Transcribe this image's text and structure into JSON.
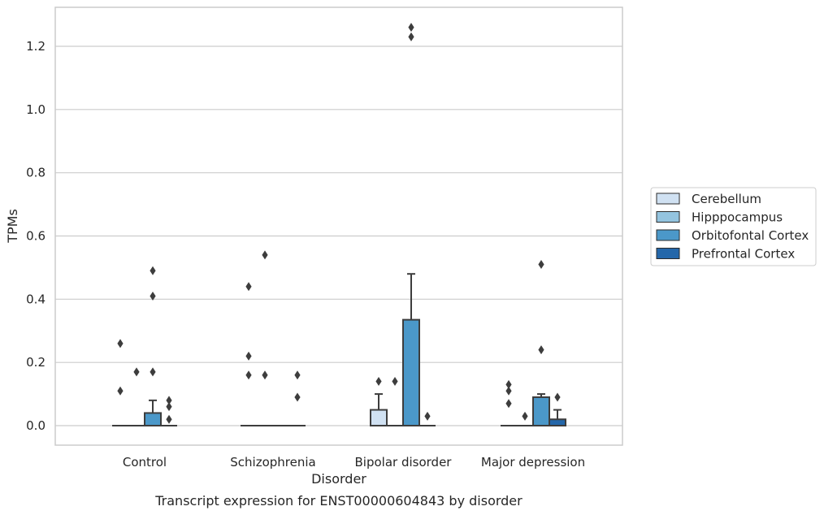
{
  "caption": "Transcript expression for ENST00000604843 by disorder",
  "chart_data": {
    "type": "box",
    "title": "",
    "xlabel": "Disorder",
    "ylabel": "TPMs",
    "ylim": [
      -0.06,
      1.32
    ],
    "yticks": [
      0.0,
      0.2,
      0.4,
      0.6,
      0.8,
      1.0,
      1.2
    ],
    "ytick_labels": [
      "0.0",
      "0.2",
      "0.4",
      "0.6",
      "0.8",
      "1.0",
      "1.2"
    ],
    "grid": true,
    "legend_position": "right",
    "categories": [
      "Control",
      "Schizophrenia",
      "Bipolar disorder",
      "Major depression"
    ],
    "series": [
      {
        "name": "Cerebellum",
        "color": "#d0e1f2",
        "boxes": [
          {
            "q1": 0,
            "median": 0,
            "q3": 0,
            "whisker_low": 0,
            "whisker_high": 0,
            "outliers": [
              0.11,
              0.26
            ]
          },
          {
            "q1": 0,
            "median": 0,
            "q3": 0,
            "whisker_low": 0,
            "whisker_high": 0,
            "outliers": [
              0.16,
              0.22,
              0.44
            ]
          },
          {
            "q1": 0,
            "median": 0,
            "q3": 0.05,
            "whisker_low": 0,
            "whisker_high": 0.1,
            "outliers": [
              0.14
            ]
          },
          {
            "q1": 0,
            "median": 0,
            "q3": 0,
            "whisker_low": 0,
            "whisker_high": 0,
            "outliers": [
              0.07,
              0.11,
              0.13
            ]
          }
        ]
      },
      {
        "name": "Hipppocampus",
        "color": "#94c4df",
        "boxes": [
          {
            "q1": 0,
            "median": 0,
            "q3": 0,
            "whisker_low": 0,
            "whisker_high": 0,
            "outliers": [
              0.17
            ]
          },
          {
            "q1": 0,
            "median": 0,
            "q3": 0,
            "whisker_low": 0,
            "whisker_high": 0,
            "outliers": [
              0.16,
              0.54
            ]
          },
          {
            "q1": 0,
            "median": 0,
            "q3": 0,
            "whisker_low": 0,
            "whisker_high": 0,
            "outliers": [
              0.14
            ]
          },
          {
            "q1": 0,
            "median": 0,
            "q3": 0,
            "whisker_low": 0,
            "whisker_high": 0,
            "outliers": [
              0.03
            ]
          }
        ]
      },
      {
        "name": "Orbitofontal Cortex",
        "color": "#4b98c9",
        "boxes": [
          {
            "q1": 0,
            "median": 0,
            "q3": 0.04,
            "whisker_low": 0,
            "whisker_high": 0.08,
            "outliers": [
              0.17,
              0.41,
              0.49
            ]
          },
          {
            "q1": 0,
            "median": 0,
            "q3": 0,
            "whisker_low": 0,
            "whisker_high": 0,
            "outliers": []
          },
          {
            "q1": 0,
            "median": 0,
            "q3": 0.335,
            "whisker_low": 0,
            "whisker_high": 0.48,
            "outliers": [
              1.23,
              1.26
            ]
          },
          {
            "q1": 0,
            "median": 0,
            "q3": 0.09,
            "whisker_low": 0,
            "whisker_high": 0.1,
            "outliers": [
              0.24,
              0.51
            ]
          }
        ]
      },
      {
        "name": "Prefrontal Cortex",
        "color": "#2467aa",
        "boxes": [
          {
            "q1": 0,
            "median": 0,
            "q3": 0,
            "whisker_low": 0,
            "whisker_high": 0,
            "outliers": [
              0.02,
              0.06,
              0.08
            ]
          },
          {
            "q1": 0,
            "median": 0,
            "q3": 0,
            "whisker_low": 0,
            "whisker_high": 0,
            "outliers": [
              0.09,
              0.16
            ]
          },
          {
            "q1": 0,
            "median": 0,
            "q3": 0,
            "whisker_low": 0,
            "whisker_high": 0,
            "outliers": [
              0.03
            ]
          },
          {
            "q1": 0,
            "median": 0,
            "q3": 0.02,
            "whisker_low": 0,
            "whisker_high": 0.05,
            "outliers": [
              0.09
            ]
          }
        ]
      }
    ]
  }
}
